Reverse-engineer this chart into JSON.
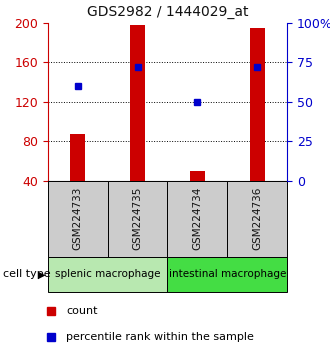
{
  "title": "GDS2982 / 1444029_at",
  "samples": [
    "GSM224733",
    "GSM224735",
    "GSM224734",
    "GSM224736"
  ],
  "counts": [
    87,
    198,
    50,
    195
  ],
  "percentile_ranks": [
    60,
    72,
    50,
    72
  ],
  "ylim_left": [
    40,
    200
  ],
  "ylim_right": [
    0,
    100
  ],
  "yticks_left": [
    40,
    80,
    120,
    160,
    200
  ],
  "yticks_right": [
    0,
    25,
    50,
    75,
    100
  ],
  "groups": [
    {
      "label": "splenic macrophage",
      "indices": [
        0,
        1
      ],
      "color": "#b8e8b0"
    },
    {
      "label": "intestinal macrophage",
      "indices": [
        2,
        3
      ],
      "color": "#44dd44"
    }
  ],
  "bar_color": "#cc0000",
  "marker_color": "#0000cc",
  "bar_width": 0.25,
  "sample_label_color": "#111111",
  "title_color": "#111111",
  "left_axis_color": "#cc0000",
  "right_axis_color": "#0000cc",
  "grid_color": "#000000",
  "bg_sample_row": "#cccccc",
  "legend_count_label": "count",
  "legend_percentile_label": "percentile rank within the sample",
  "cell_type_label": "cell type"
}
